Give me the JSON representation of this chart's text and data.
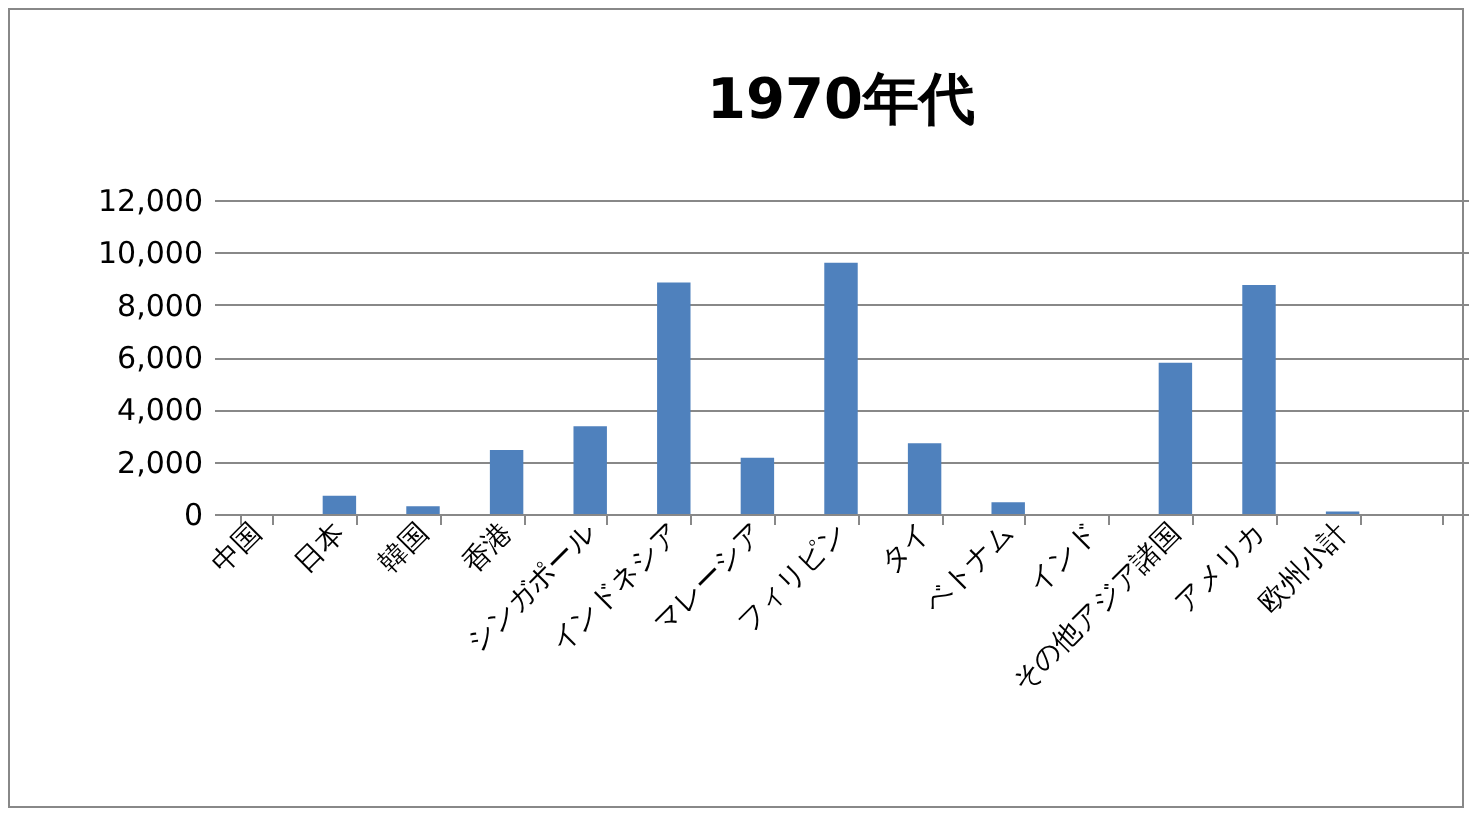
{
  "chart_data": {
    "type": "bar",
    "title": "1970年代",
    "categories": [
      "中国",
      "日本",
      "韓国",
      "香港",
      "シンガポール",
      "インドネシア",
      "マレーシア",
      "フィリピン",
      "タイ",
      "ベトナム",
      "インド",
      "その他アジア諸国",
      "アメリカ",
      "欧州小計",
      null
    ],
    "values": [
      0,
      700,
      300,
      2450,
      3350,
      8850,
      2150,
      9600,
      2700,
      450,
      0,
      5780,
      8750,
      100,
      0
    ],
    "color": "#4f81bd",
    "ylim": [
      0,
      12000
    ],
    "yticks": [
      0,
      {
        "value": 2000,
        "label": "2,000"
      },
      {
        "value": 4000,
        "label": "4,000"
      },
      {
        "value": 6000,
        "label": "6,000"
      },
      {
        "value": 8000,
        "label": "8,000"
      },
      {
        "value": 10000,
        "label": "10,000"
      },
      {
        "value": 12000,
        "label": "12,000"
      }
    ],
    "grid": true
  }
}
